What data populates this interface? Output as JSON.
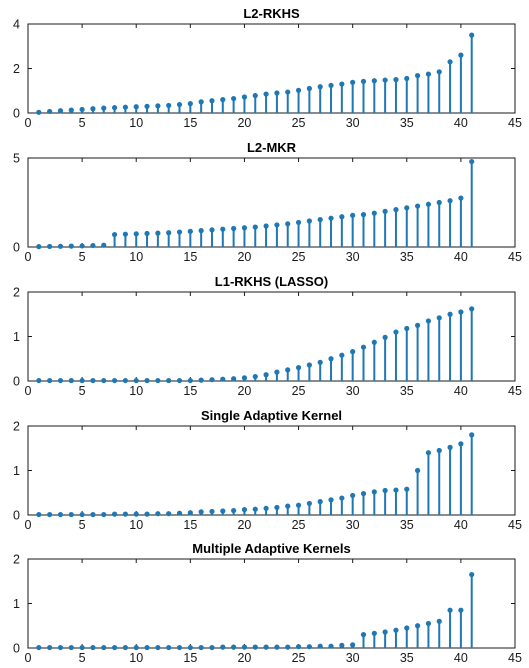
{
  "figure": {
    "stem_color": "#1f77b4"
  },
  "chart_data": [
    {
      "type": "stem",
      "title": "L2-RKHS",
      "xlim": [
        0,
        45
      ],
      "ylim": [
        0,
        4
      ],
      "xticks": [
        0,
        5,
        10,
        15,
        20,
        25,
        30,
        35,
        40,
        45
      ],
      "yticks": [
        0,
        2,
        4
      ],
      "x": [
        1,
        2,
        3,
        4,
        5,
        6,
        7,
        8,
        9,
        10,
        11,
        12,
        13,
        14,
        15,
        16,
        17,
        18,
        19,
        20,
        21,
        22,
        23,
        24,
        25,
        26,
        27,
        28,
        29,
        30,
        31,
        32,
        33,
        34,
        35,
        36,
        37,
        38,
        39,
        40,
        41
      ],
      "values": [
        0.03,
        0.07,
        0.1,
        0.13,
        0.16,
        0.19,
        0.22,
        0.24,
        0.26,
        0.28,
        0.3,
        0.32,
        0.34,
        0.38,
        0.42,
        0.5,
        0.55,
        0.6,
        0.65,
        0.72,
        0.78,
        0.85,
        0.9,
        0.94,
        1.02,
        1.1,
        1.18,
        1.24,
        1.3,
        1.38,
        1.42,
        1.45,
        1.48,
        1.5,
        1.55,
        1.68,
        1.75,
        1.85,
        2.3,
        2.6,
        3.5
      ]
    },
    {
      "type": "stem",
      "title": "L2-MKR",
      "xlim": [
        0,
        45
      ],
      "ylim": [
        0,
        5
      ],
      "xticks": [
        0,
        5,
        10,
        15,
        20,
        25,
        30,
        35,
        40,
        45
      ],
      "yticks": [
        0,
        5
      ],
      "x": [
        1,
        2,
        3,
        4,
        5,
        6,
        7,
        8,
        9,
        10,
        11,
        12,
        13,
        14,
        15,
        16,
        17,
        18,
        19,
        20,
        21,
        22,
        23,
        24,
        25,
        26,
        27,
        28,
        29,
        30,
        31,
        32,
        33,
        34,
        35,
        36,
        37,
        38,
        39,
        40,
        41
      ],
      "values": [
        0.02,
        0.03,
        0.04,
        0.05,
        0.06,
        0.08,
        0.1,
        0.7,
        0.72,
        0.74,
        0.76,
        0.78,
        0.8,
        0.84,
        0.88,
        0.92,
        0.96,
        1.0,
        1.04,
        1.08,
        1.12,
        1.18,
        1.24,
        1.3,
        1.38,
        1.46,
        1.54,
        1.62,
        1.7,
        1.78,
        1.82,
        1.9,
        2.0,
        2.1,
        2.2,
        2.3,
        2.4,
        2.5,
        2.6,
        2.75,
        4.8
      ]
    },
    {
      "type": "stem",
      "title": "L1-RKHS (LASSO)",
      "xlim": [
        0,
        45
      ],
      "ylim": [
        0,
        2
      ],
      "xticks": [
        0,
        5,
        10,
        15,
        20,
        25,
        30,
        35,
        40,
        45
      ],
      "yticks": [
        0,
        1,
        2
      ],
      "x": [
        1,
        2,
        3,
        4,
        5,
        6,
        7,
        8,
        9,
        10,
        11,
        12,
        13,
        14,
        15,
        16,
        17,
        18,
        19,
        20,
        21,
        22,
        23,
        24,
        25,
        26,
        27,
        28,
        29,
        30,
        31,
        32,
        33,
        34,
        35,
        36,
        37,
        38,
        39,
        40,
        41
      ],
      "values": [
        0.01,
        0.01,
        0.01,
        0.01,
        0.01,
        0.01,
        0.01,
        0.01,
        0.01,
        0.01,
        0.01,
        0.01,
        0.01,
        0.01,
        0.01,
        0.02,
        0.03,
        0.04,
        0.05,
        0.07,
        0.1,
        0.14,
        0.2,
        0.25,
        0.3,
        0.36,
        0.42,
        0.5,
        0.58,
        0.66,
        0.76,
        0.87,
        0.98,
        1.1,
        1.18,
        1.25,
        1.35,
        1.42,
        1.5,
        1.55,
        1.62
      ]
    },
    {
      "type": "stem",
      "title": "Single Adaptive Kernel",
      "xlim": [
        0,
        45
      ],
      "ylim": [
        0,
        2
      ],
      "xticks": [
        0,
        5,
        10,
        15,
        20,
        25,
        30,
        35,
        40,
        45
      ],
      "yticks": [
        0,
        1,
        2
      ],
      "x": [
        1,
        2,
        3,
        4,
        5,
        6,
        7,
        8,
        9,
        10,
        11,
        12,
        13,
        14,
        15,
        16,
        17,
        18,
        19,
        20,
        21,
        22,
        23,
        24,
        25,
        26,
        27,
        28,
        29,
        30,
        31,
        32,
        33,
        34,
        35,
        36,
        37,
        38,
        39,
        40,
        41
      ],
      "values": [
        0.01,
        0.01,
        0.01,
        0.01,
        0.01,
        0.01,
        0.01,
        0.02,
        0.02,
        0.02,
        0.02,
        0.03,
        0.03,
        0.04,
        0.05,
        0.07,
        0.08,
        0.09,
        0.1,
        0.12,
        0.13,
        0.15,
        0.17,
        0.2,
        0.22,
        0.26,
        0.3,
        0.34,
        0.38,
        0.44,
        0.48,
        0.52,
        0.55,
        0.56,
        0.58,
        1.0,
        1.4,
        1.45,
        1.52,
        1.6,
        1.8
      ]
    },
    {
      "type": "stem",
      "title": "Multiple Adaptive Kernels",
      "xlim": [
        0,
        45
      ],
      "ylim": [
        0,
        2
      ],
      "xticks": [
        0,
        5,
        10,
        15,
        20,
        25,
        30,
        35,
        40,
        45
      ],
      "yticks": [
        0,
        1,
        2
      ],
      "x": [
        1,
        2,
        3,
        4,
        5,
        6,
        7,
        8,
        9,
        10,
        11,
        12,
        13,
        14,
        15,
        16,
        17,
        18,
        19,
        20,
        21,
        22,
        23,
        24,
        25,
        26,
        27,
        28,
        29,
        30,
        31,
        32,
        33,
        34,
        35,
        36,
        37,
        38,
        39,
        40,
        41
      ],
      "values": [
        0.01,
        0.01,
        0.01,
        0.01,
        0.01,
        0.01,
        0.01,
        0.01,
        0.01,
        0.01,
        0.01,
        0.01,
        0.01,
        0.01,
        0.01,
        0.01,
        0.01,
        0.02,
        0.02,
        0.02,
        0.02,
        0.02,
        0.02,
        0.02,
        0.03,
        0.03,
        0.04,
        0.04,
        0.06,
        0.07,
        0.3,
        0.33,
        0.36,
        0.4,
        0.45,
        0.5,
        0.55,
        0.6,
        0.85,
        0.85,
        1.65
      ]
    }
  ]
}
